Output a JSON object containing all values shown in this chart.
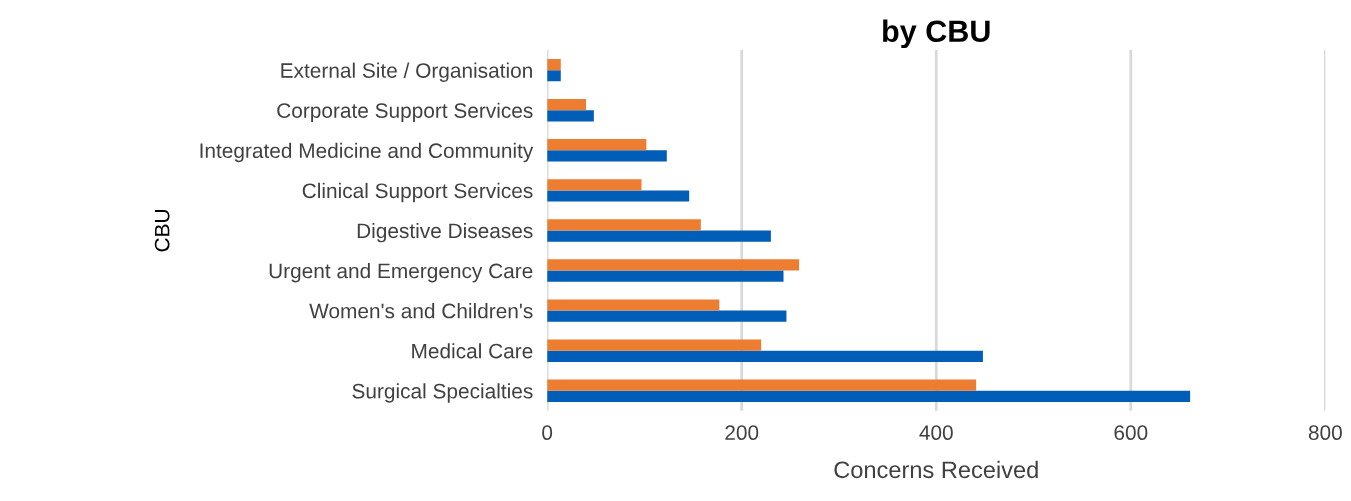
{
  "chart_data": {
    "type": "bar",
    "orientation": "horizontal",
    "title": "by CBU",
    "xlabel": "Concerns Received",
    "ylabel": "CBU",
    "categories": [
      "External Site / Organisation",
      "Corporate Support Services",
      "Integrated Medicine and Community",
      "Clinical Support Services",
      "Digestive Diseases",
      "Urgent and Emergency Care",
      "Women's and Children's",
      "Medical Care",
      "Surgical Specialties"
    ],
    "series": [
      {
        "color": "#005eb8",
        "values": [
          14,
          48,
          123,
          146,
          230,
          243,
          246,
          448,
          661
        ]
      },
      {
        "color": "#ed7d31",
        "values": [
          14,
          40,
          102,
          97,
          158,
          259,
          177,
          220,
          441
        ]
      }
    ],
    "xlim": [
      0,
      800
    ],
    "xticks": [
      0,
      200,
      400,
      600,
      800
    ],
    "grid": "x"
  }
}
